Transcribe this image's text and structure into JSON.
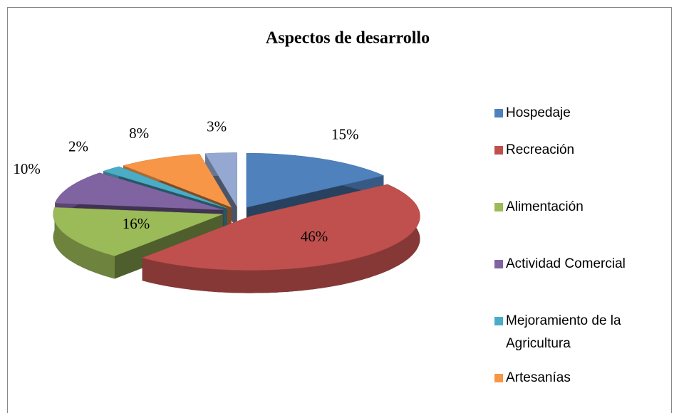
{
  "chart_data": {
    "type": "pie",
    "title": "Aspectos de desarrollo",
    "categories": [
      "Hospedaje",
      "Recreación",
      "Alimentación",
      "Actividad Comercial",
      "Mejoramiento de la Agricultura",
      "Artesanías",
      null
    ],
    "values": [
      15,
      46,
      16,
      10,
      2,
      8,
      3
    ],
    "value_labels": [
      "15%",
      "46%",
      "16%",
      "10%",
      "2%",
      "8%",
      "3%"
    ],
    "colors": [
      "#4f81bd",
      "#c0504d",
      "#9bbb59",
      "#8064a2",
      "#4bacc6",
      "#f79646",
      "#94a8d2"
    ],
    "legend": "right"
  }
}
